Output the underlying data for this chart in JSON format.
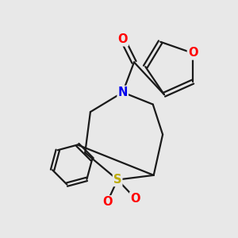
{
  "bg_color": "#e8e8e8",
  "bond_color": "#1a1a1a",
  "bond_width": 1.6,
  "atom_colors": {
    "O": "#ff0000",
    "N": "#0000ee",
    "S": "#bbaa00",
    "C": "#1a1a1a"
  },
  "font_size_atom": 10.5
}
